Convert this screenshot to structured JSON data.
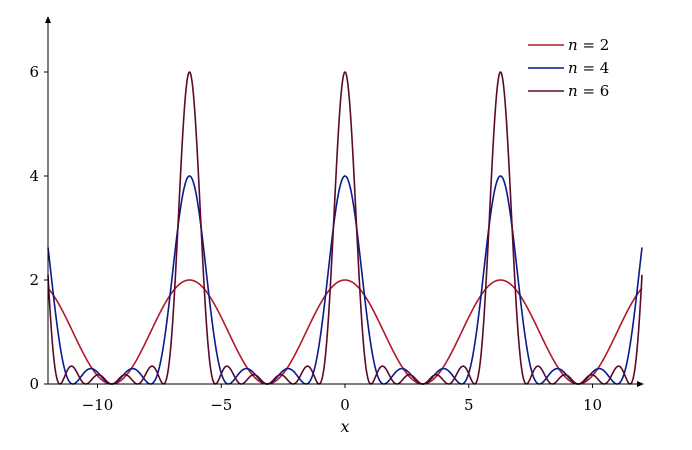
{
  "chart_data": {
    "type": "line",
    "title": "",
    "xlabel": "x",
    "ylabel": "",
    "xlim": [
      -12,
      12
    ],
    "ylim": [
      0,
      7
    ],
    "x_ticks": [
      -10,
      -5,
      0,
      5,
      10
    ],
    "x_tick_labels": [
      "−10",
      "−5",
      "0",
      "5",
      "10"
    ],
    "y_ticks": [
      0,
      2,
      4,
      6
    ],
    "y_tick_labels": [
      "0",
      "2",
      "4",
      "6"
    ],
    "grid": false,
    "legend_position": "top-right",
    "series": [
      {
        "name": "n = 2",
        "name_var": "n",
        "name_rest": " = 2",
        "n": 2,
        "color": "#b2182b"
      },
      {
        "name": "n = 4",
        "name_var": "n",
        "name_rest": " = 4",
        "n": 4,
        "color": "#0a1a8c"
      },
      {
        "name": "n = 6",
        "name_var": "n",
        "name_rest": " = 6",
        "n": 6,
        "color": "#5a0a2a"
      }
    ]
  }
}
